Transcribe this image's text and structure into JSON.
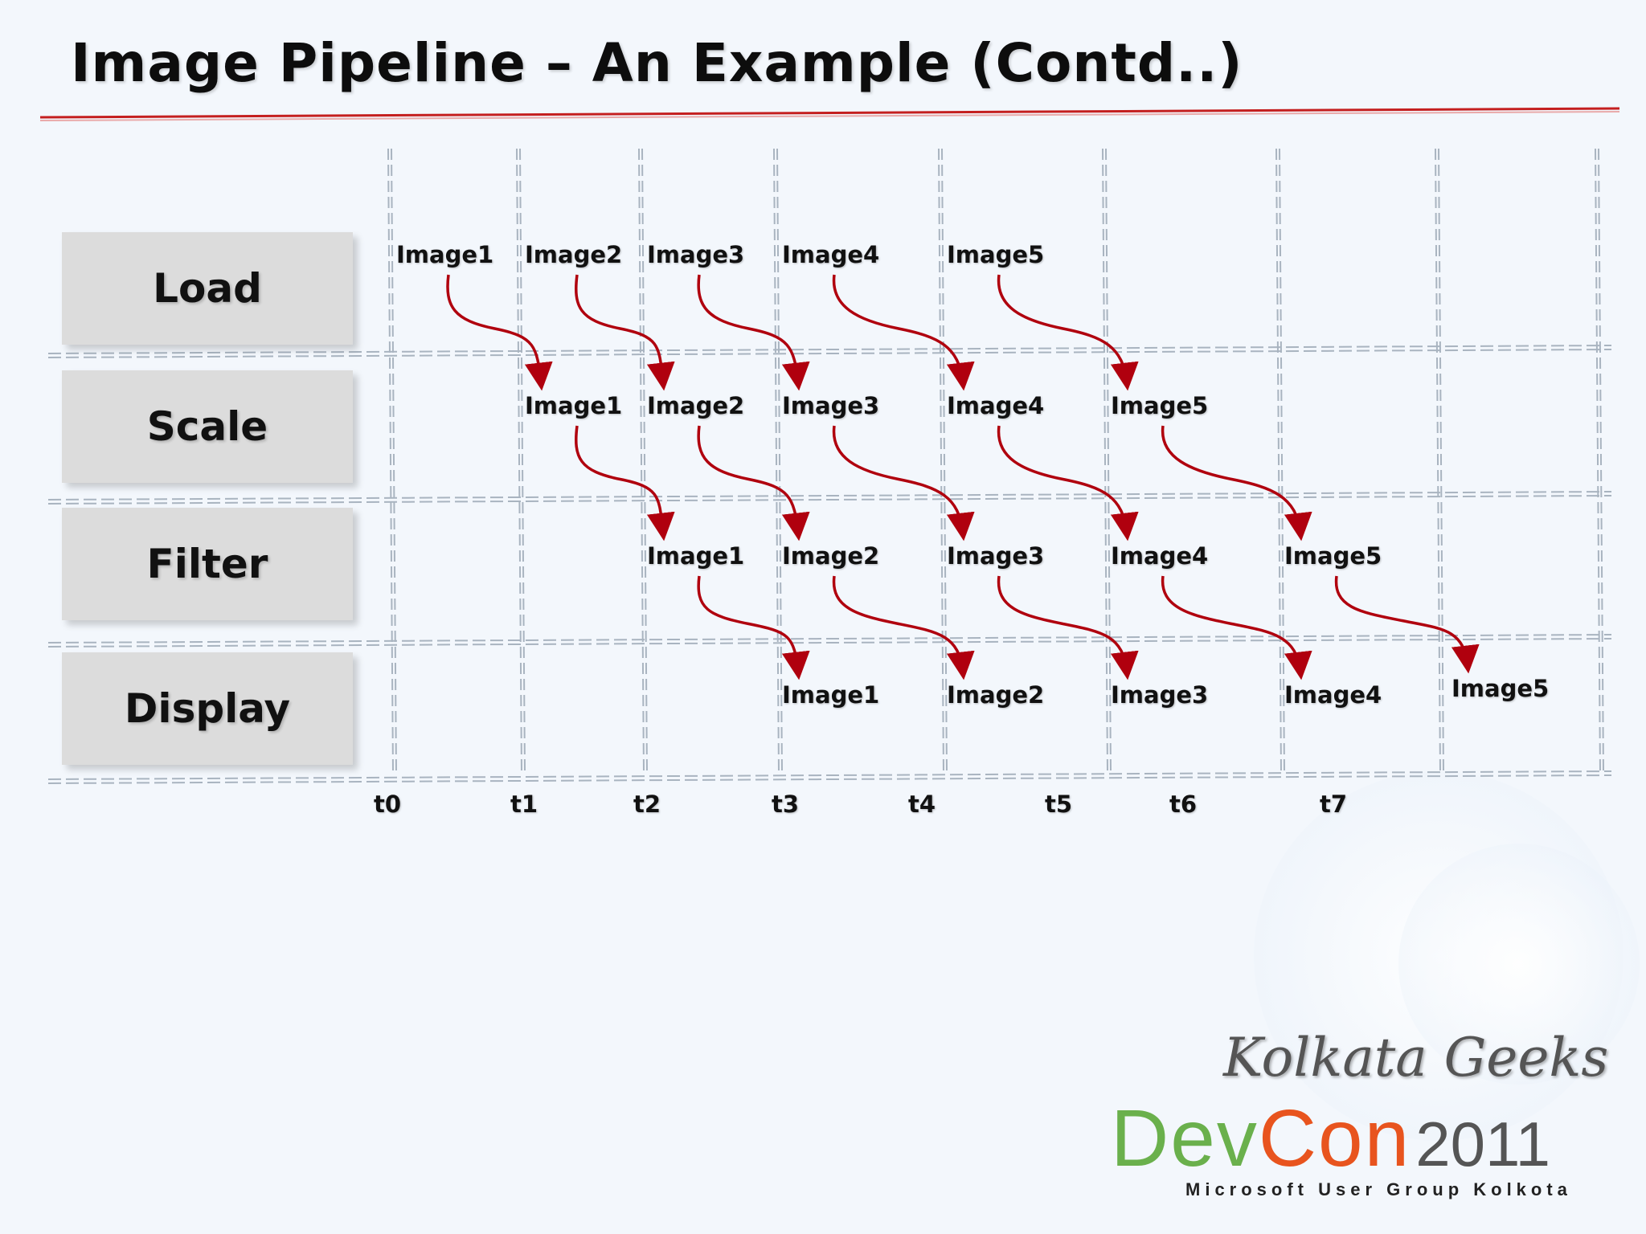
{
  "title": "Image Pipeline – An Example (Contd..)",
  "colors": {
    "arrow": "#b0000e",
    "underline": "#c41f1f",
    "grid": "#a9b4c0"
  },
  "stages": [
    "Load",
    "Scale",
    "Filter",
    "Display"
  ],
  "time_ticks": [
    "t0",
    "t1",
    "t2",
    "t3",
    "t4",
    "t5",
    "t6",
    "t7"
  ],
  "images": [
    "Image1",
    "Image2",
    "Image3",
    "Image4",
    "Image5"
  ],
  "logo": {
    "top_text": "Kolkata Geeks",
    "dev": "Dev",
    "con": "Con",
    "year": "2011",
    "subtitle": "Microsoft User Group Kolkota"
  }
}
